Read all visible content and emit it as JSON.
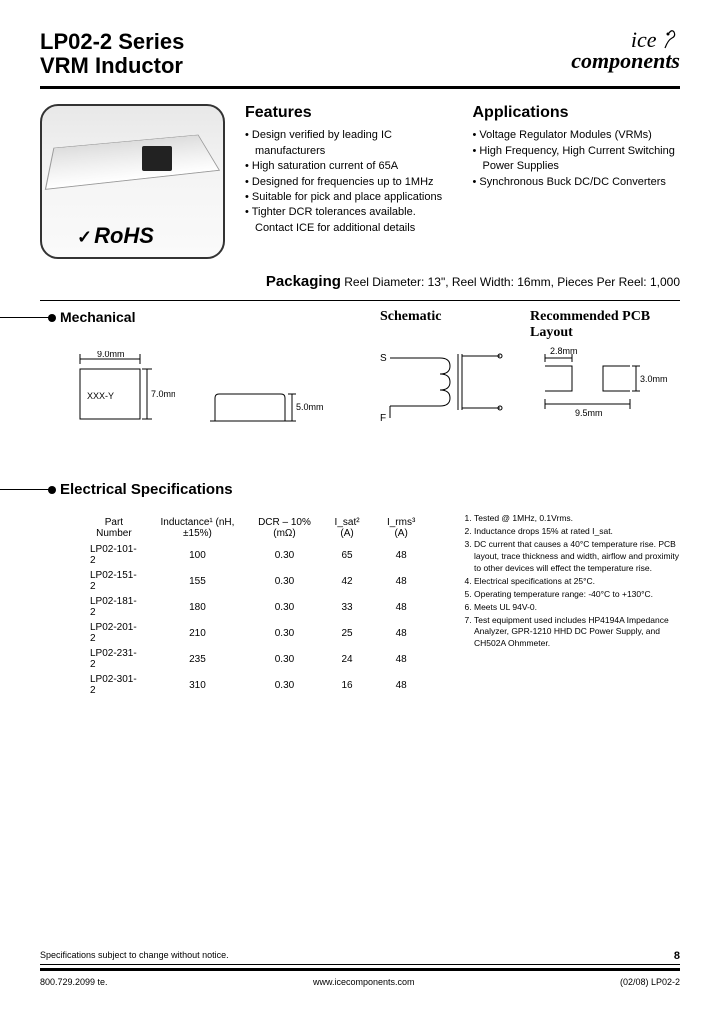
{
  "header": {
    "title_line1": "LP02-2 Series",
    "title_line2": "VRM  Inductor",
    "logo_top": "ice",
    "logo_bottom": "components"
  },
  "rohs_label": "RoHS",
  "features": {
    "heading": "Features",
    "items": [
      "Design verified by leading IC manufacturers",
      "High saturation current of 65A",
      "Designed for frequencies up to 1MHz",
      "Suitable for pick and place applications",
      "Tighter DCR tolerances available. Contact ICE for additional details"
    ]
  },
  "applications": {
    "heading": "Applications",
    "items": [
      "Voltage Regulator Modules (VRMs)",
      "High Frequency, High Current Switching Power Supplies",
      "Synchronous Buck DC/DC Converters"
    ]
  },
  "packaging": {
    "label": "Packaging",
    "text": "Reel Diameter: 13\", Reel Width: 16mm, Pieces Per Reel: 1,000"
  },
  "mech": {
    "heading": "Mechanical",
    "schematic": "Schematic",
    "pcb": "Recommended PCB Layout",
    "dim_w": "9.0mm",
    "dim_h": "7.0mm",
    "dim_t": "5.0mm",
    "dim_pad_w": "2.8mm",
    "dim_pad_h": "3.0mm",
    "dim_span": "9.5mm",
    "label_xxx": "XXX-Y",
    "sch_s": "S",
    "sch_f": "F"
  },
  "electrical": {
    "heading": "Electrical Specifications",
    "columns": [
      "Part Number",
      "Inductance¹ (nH, ±15%)",
      "DCR – 10% (mΩ)",
      "I_sat² (A)",
      "I_rms³ (A)"
    ],
    "rows": [
      [
        "LP02-101-2",
        "100",
        "0.30",
        "65",
        "48"
      ],
      [
        "LP02-151-2",
        "155",
        "0.30",
        "42",
        "48"
      ],
      [
        "LP02-181-2",
        "180",
        "0.30",
        "33",
        "48"
      ],
      [
        "LP02-201-2",
        "210",
        "0.30",
        "25",
        "48"
      ],
      [
        "LP02-231-2",
        "235",
        "0.30",
        "24",
        "48"
      ],
      [
        "LP02-301-2",
        "310",
        "0.30",
        "16",
        "48"
      ]
    ],
    "notes": [
      "Tested @ 1MHz, 0.1Vrms.",
      "Inductance drops 15% at rated I_sat.",
      "DC current that causes a 40°C temperature rise. PCB layout, trace thickness and width, airflow and proximity to other devices will effect the temperature rise.",
      "Electrical specifications at 25°C.",
      "Operating temperature range: -40°C to +130°C.",
      "Meets UL 94V-0.",
      "Test equipment used includes HP4194A Impedance Analyzer, GPR-1210 HHD DC Power Supply, and CH502A Ohmmeter."
    ]
  },
  "footer": {
    "disclaimer": "Specifications subject to change without notice.",
    "page": "8",
    "phone": "800.729.2099 te.",
    "url": "www.icecomponents.com",
    "doc": "(02/08) LP02-2"
  }
}
